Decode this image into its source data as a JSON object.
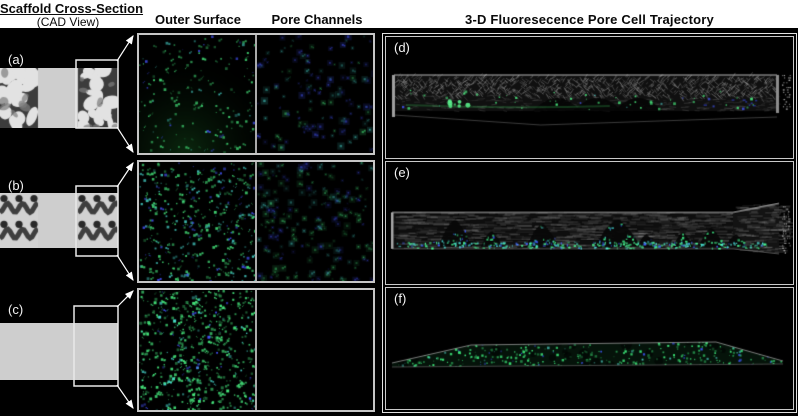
{
  "header": {
    "scaffold_title": "Scaffold Cross-Section",
    "scaffold_subtitle": "(CAD View)",
    "col_outer_surface": "Outer Surface",
    "col_pore_channels": "Pore Channels",
    "col_trajectory": "3-D  Fluoresecence Pore Cell Trajectory"
  },
  "rows": [
    {
      "label": "(a)",
      "cad_texture": "foam",
      "outer_surface": {
        "dots": 175,
        "green": 0.72,
        "cyan": 0.1,
        "blue": 0.18,
        "brightness": 0.85,
        "glow": true
      },
      "pore_channels": {
        "dots": 130,
        "green": 0.2,
        "cyan": 0.35,
        "blue": 0.45,
        "brightness": 0.55,
        "glow": false
      }
    },
    {
      "label": "(b)",
      "cad_texture": "wave",
      "outer_surface": {
        "dots": 390,
        "green": 0.6,
        "cyan": 0.25,
        "blue": 0.15,
        "brightness": 0.9,
        "glow": false
      },
      "pore_channels": {
        "dots": 210,
        "green": 0.4,
        "cyan": 0.3,
        "blue": 0.3,
        "brightness": 0.5,
        "glow": false
      }
    },
    {
      "label": "(c)",
      "cad_texture": "solid",
      "outer_surface": {
        "dots": 540,
        "green": 0.85,
        "cyan": 0.08,
        "blue": 0.07,
        "brightness": 1.0,
        "glow": false
      },
      "pore_channels": {
        "dots": 0,
        "green": 0,
        "cyan": 0,
        "blue": 0,
        "brightness": 0,
        "glow": false
      }
    }
  ],
  "panels_3d": [
    {
      "label": "(d)",
      "type": "mesh-slab"
    },
    {
      "label": "(e)",
      "type": "wave-slab"
    },
    {
      "label": "(f)",
      "type": "flat-plate"
    }
  ],
  "colors": {
    "page": "#ffffff",
    "panel_background": "#000000",
    "header_text": "#0a0a0a",
    "panel_label_text": "#f5f5f5",
    "border_light": "#c6c6c6",
    "fluor_green": "#46e87d",
    "fluor_cyan": "#49dcd2",
    "fluor_blue": "#4455ff"
  }
}
